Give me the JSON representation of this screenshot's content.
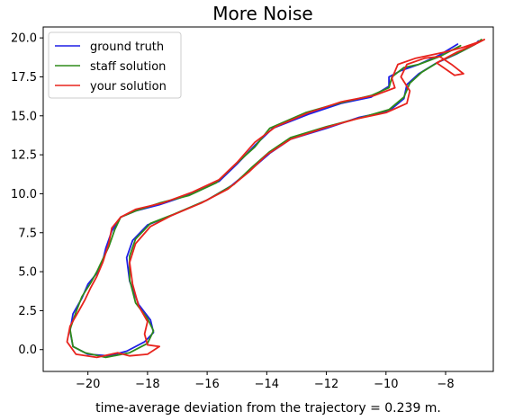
{
  "chart_data": {
    "type": "line",
    "title": "More Noise",
    "xlabel": "time-average deviation from the trajectory = 0.239 m.",
    "ylabel": "",
    "xlim": [
      -21.5,
      -6.4
    ],
    "ylim": [
      -1.4,
      20.7
    ],
    "xticks": [
      -20,
      -18,
      -16,
      -14,
      -12,
      -10,
      -8
    ],
    "xtick_labels": [
      "−20",
      "−18",
      "−16",
      "−14",
      "−12",
      "−10",
      "−8"
    ],
    "yticks": [
      0.0,
      2.5,
      5.0,
      7.5,
      10.0,
      12.5,
      15.0,
      17.5,
      20.0
    ],
    "ytick_labels": [
      "0.0",
      "2.5",
      "5.0",
      "7.5",
      "10.0",
      "12.5",
      "15.0",
      "17.5",
      "20.0"
    ],
    "grid": false,
    "legend_position": "upper-left",
    "series": [
      {
        "name": "ground truth",
        "color": "#1f1fe6",
        "points": [
          [
            -7.6,
            19.6
          ],
          [
            -8.2,
            18.9
          ],
          [
            -8.9,
            18.3
          ],
          [
            -9.5,
            17.9
          ],
          [
            -9.9,
            17.5
          ],
          [
            -9.9,
            16.9
          ],
          [
            -10.5,
            16.2
          ],
          [
            -11.5,
            15.8
          ],
          [
            -12.6,
            15.1
          ],
          [
            -13.8,
            14.2
          ],
          [
            -14.4,
            13.1
          ],
          [
            -15.0,
            11.9
          ],
          [
            -15.6,
            10.8
          ],
          [
            -16.5,
            10.0
          ],
          [
            -17.6,
            9.3
          ],
          [
            -18.4,
            8.9
          ],
          [
            -18.9,
            8.5
          ],
          [
            -19.2,
            7.6
          ],
          [
            -19.4,
            6.5
          ],
          [
            -19.5,
            5.7
          ],
          [
            -19.7,
            4.9
          ],
          [
            -20.0,
            4.2
          ],
          [
            -20.2,
            3.3
          ],
          [
            -20.5,
            2.3
          ],
          [
            -20.6,
            1.2
          ],
          [
            -20.5,
            0.2
          ],
          [
            -20.0,
            -0.3
          ],
          [
            -19.3,
            -0.4
          ],
          [
            -18.7,
            -0.1
          ],
          [
            -18.1,
            0.5
          ],
          [
            -17.8,
            1.1
          ],
          [
            -17.9,
            1.9
          ],
          [
            -18.3,
            2.9
          ],
          [
            -18.6,
            4.4
          ],
          [
            -18.7,
            5.9
          ],
          [
            -18.5,
            7.0
          ],
          [
            -18.0,
            8.0
          ],
          [
            -17.2,
            8.6
          ],
          [
            -16.0,
            9.6
          ],
          [
            -15.2,
            10.5
          ],
          [
            -14.5,
            11.6
          ],
          [
            -13.9,
            12.6
          ],
          [
            -13.2,
            13.5
          ],
          [
            -12.0,
            14.2
          ],
          [
            -10.9,
            14.9
          ],
          [
            -9.9,
            15.3
          ],
          [
            -9.4,
            16.1
          ],
          [
            -9.3,
            17.0
          ],
          [
            -8.9,
            17.7
          ],
          [
            -8.3,
            18.4
          ],
          [
            -7.6,
            19.0
          ],
          [
            -7.0,
            19.6
          ],
          [
            -6.9,
            19.8
          ]
        ]
      },
      {
        "name": "staff solution",
        "color": "#2e8b1a",
        "points": [
          [
            -7.5,
            19.5
          ],
          [
            -8.2,
            18.8
          ],
          [
            -8.9,
            18.3
          ],
          [
            -9.4,
            18.1
          ],
          [
            -9.8,
            17.5
          ],
          [
            -9.9,
            16.8
          ],
          [
            -10.5,
            16.3
          ],
          [
            -11.6,
            15.8
          ],
          [
            -12.7,
            15.2
          ],
          [
            -13.9,
            14.2
          ],
          [
            -14.4,
            13.0
          ],
          [
            -15.1,
            11.8
          ],
          [
            -15.7,
            10.7
          ],
          [
            -16.6,
            9.9
          ],
          [
            -17.6,
            9.4
          ],
          [
            -18.4,
            8.9
          ],
          [
            -18.9,
            8.5
          ],
          [
            -19.1,
            7.7
          ],
          [
            -19.3,
            6.6
          ],
          [
            -19.5,
            5.8
          ],
          [
            -19.7,
            5.0
          ],
          [
            -19.9,
            4.3
          ],
          [
            -20.2,
            3.4
          ],
          [
            -20.4,
            2.4
          ],
          [
            -20.6,
            1.3
          ],
          [
            -20.5,
            0.2
          ],
          [
            -20.1,
            -0.2
          ],
          [
            -19.4,
            -0.5
          ],
          [
            -18.6,
            -0.2
          ],
          [
            -18.0,
            0.4
          ],
          [
            -17.8,
            1.2
          ],
          [
            -18.0,
            2.0
          ],
          [
            -18.4,
            3.0
          ],
          [
            -18.6,
            4.5
          ],
          [
            -18.6,
            6.0
          ],
          [
            -18.4,
            7.1
          ],
          [
            -17.9,
            8.1
          ],
          [
            -17.1,
            8.7
          ],
          [
            -16.0,
            9.6
          ],
          [
            -15.1,
            10.6
          ],
          [
            -14.5,
            11.7
          ],
          [
            -13.9,
            12.7
          ],
          [
            -13.2,
            13.6
          ],
          [
            -12.0,
            14.3
          ],
          [
            -10.8,
            14.9
          ],
          [
            -9.9,
            15.4
          ],
          [
            -9.4,
            16.2
          ],
          [
            -9.2,
            17.1
          ],
          [
            -8.8,
            17.8
          ],
          [
            -8.2,
            18.5
          ],
          [
            -7.5,
            19.1
          ],
          [
            -7.0,
            19.6
          ],
          [
            -6.8,
            19.9
          ]
        ]
      },
      {
        "name": "your solution",
        "color": "#e8231d",
        "points": [
          [
            -6.8,
            19.8
          ],
          [
            -7.4,
            19.4
          ],
          [
            -8.0,
            19.1
          ],
          [
            -9.0,
            18.7
          ],
          [
            -9.6,
            18.3
          ],
          [
            -9.8,
            17.4
          ],
          [
            -9.7,
            16.8
          ],
          [
            -10.4,
            16.3
          ],
          [
            -11.5,
            15.9
          ],
          [
            -12.6,
            15.2
          ],
          [
            -13.7,
            14.3
          ],
          [
            -14.4,
            13.3
          ],
          [
            -15.0,
            12.0
          ],
          [
            -15.6,
            10.9
          ],
          [
            -16.5,
            10.1
          ],
          [
            -17.5,
            9.4
          ],
          [
            -18.4,
            9.0
          ],
          [
            -18.9,
            8.5
          ],
          [
            -19.2,
            7.8
          ],
          [
            -19.3,
            6.8
          ],
          [
            -19.5,
            5.6
          ],
          [
            -19.7,
            4.7
          ],
          [
            -19.9,
            4.0
          ],
          [
            -20.1,
            3.2
          ],
          [
            -20.3,
            2.5
          ],
          [
            -20.6,
            1.5
          ],
          [
            -20.7,
            0.5
          ],
          [
            -20.4,
            -0.3
          ],
          [
            -19.7,
            -0.5
          ],
          [
            -19.0,
            -0.2
          ],
          [
            -18.6,
            -0.4
          ],
          [
            -18.0,
            -0.3
          ],
          [
            -17.6,
            0.2
          ],
          [
            -18.0,
            0.3
          ],
          [
            -18.1,
            1.0
          ],
          [
            -18.0,
            1.8
          ],
          [
            -18.3,
            2.8
          ],
          [
            -18.5,
            4.2
          ],
          [
            -18.6,
            5.6
          ],
          [
            -18.4,
            6.8
          ],
          [
            -17.9,
            7.9
          ],
          [
            -17.2,
            8.6
          ],
          [
            -16.2,
            9.4
          ],
          [
            -15.3,
            10.3
          ],
          [
            -14.6,
            11.4
          ],
          [
            -14.0,
            12.5
          ],
          [
            -13.2,
            13.5
          ],
          [
            -12.1,
            14.2
          ],
          [
            -11.0,
            14.8
          ],
          [
            -10.0,
            15.2
          ],
          [
            -9.3,
            15.8
          ],
          [
            -9.2,
            16.6
          ],
          [
            -9.5,
            17.5
          ],
          [
            -9.3,
            18.3
          ],
          [
            -8.7,
            18.7
          ],
          [
            -8.2,
            18.8
          ],
          [
            -7.8,
            18.3
          ],
          [
            -7.4,
            17.7
          ],
          [
            -7.7,
            17.6
          ],
          [
            -8.3,
            18.4
          ],
          [
            -7.6,
            19.1
          ],
          [
            -7.0,
            19.6
          ],
          [
            -6.7,
            19.9
          ]
        ]
      }
    ]
  }
}
